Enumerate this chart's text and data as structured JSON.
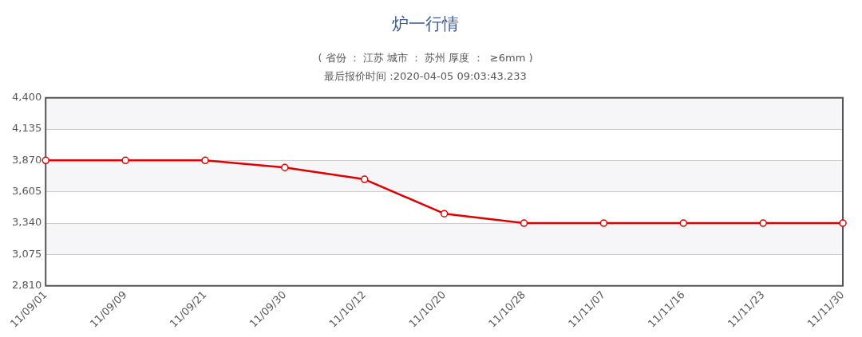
{
  "chart_data": {
    "type": "line",
    "title": "炉一行情",
    "subtitle": "( 省份 ： 江苏 城市 ： 苏州 厚度 ：  ≥6mm )",
    "annotations": [
      "最后报价时间 :2020-04-05 09:03:43.233"
    ],
    "categories": [
      "11/09/01",
      "11/09/09",
      "11/09/21",
      "11/09/30",
      "11/10/12",
      "11/10/20",
      "11/10/28",
      "11/11/07",
      "11/11/16",
      "11/11/23",
      "11/11/30"
    ],
    "series": [
      {
        "color": "#e00000",
        "values": [
          3870,
          3870,
          3870,
          3810,
          3710,
          3420,
          3340,
          3340,
          3340,
          3340,
          3340
        ]
      }
    ],
    "ylim": [
      2810,
      4400
    ],
    "yticks": [
      {
        "value": 2810,
        "label": "2,810"
      },
      {
        "value": 3075,
        "label": "3,075"
      },
      {
        "value": 3340,
        "label": "3,340"
      },
      {
        "value": 3605,
        "label": "3,605"
      },
      {
        "value": 3870,
        "label": "3,870"
      },
      {
        "value": 4135,
        "label": "4,135"
      },
      {
        "value": 4400,
        "label": "4,400"
      }
    ],
    "grid": "y",
    "legend": false,
    "marker": "circle",
    "line_style": "solid"
  }
}
